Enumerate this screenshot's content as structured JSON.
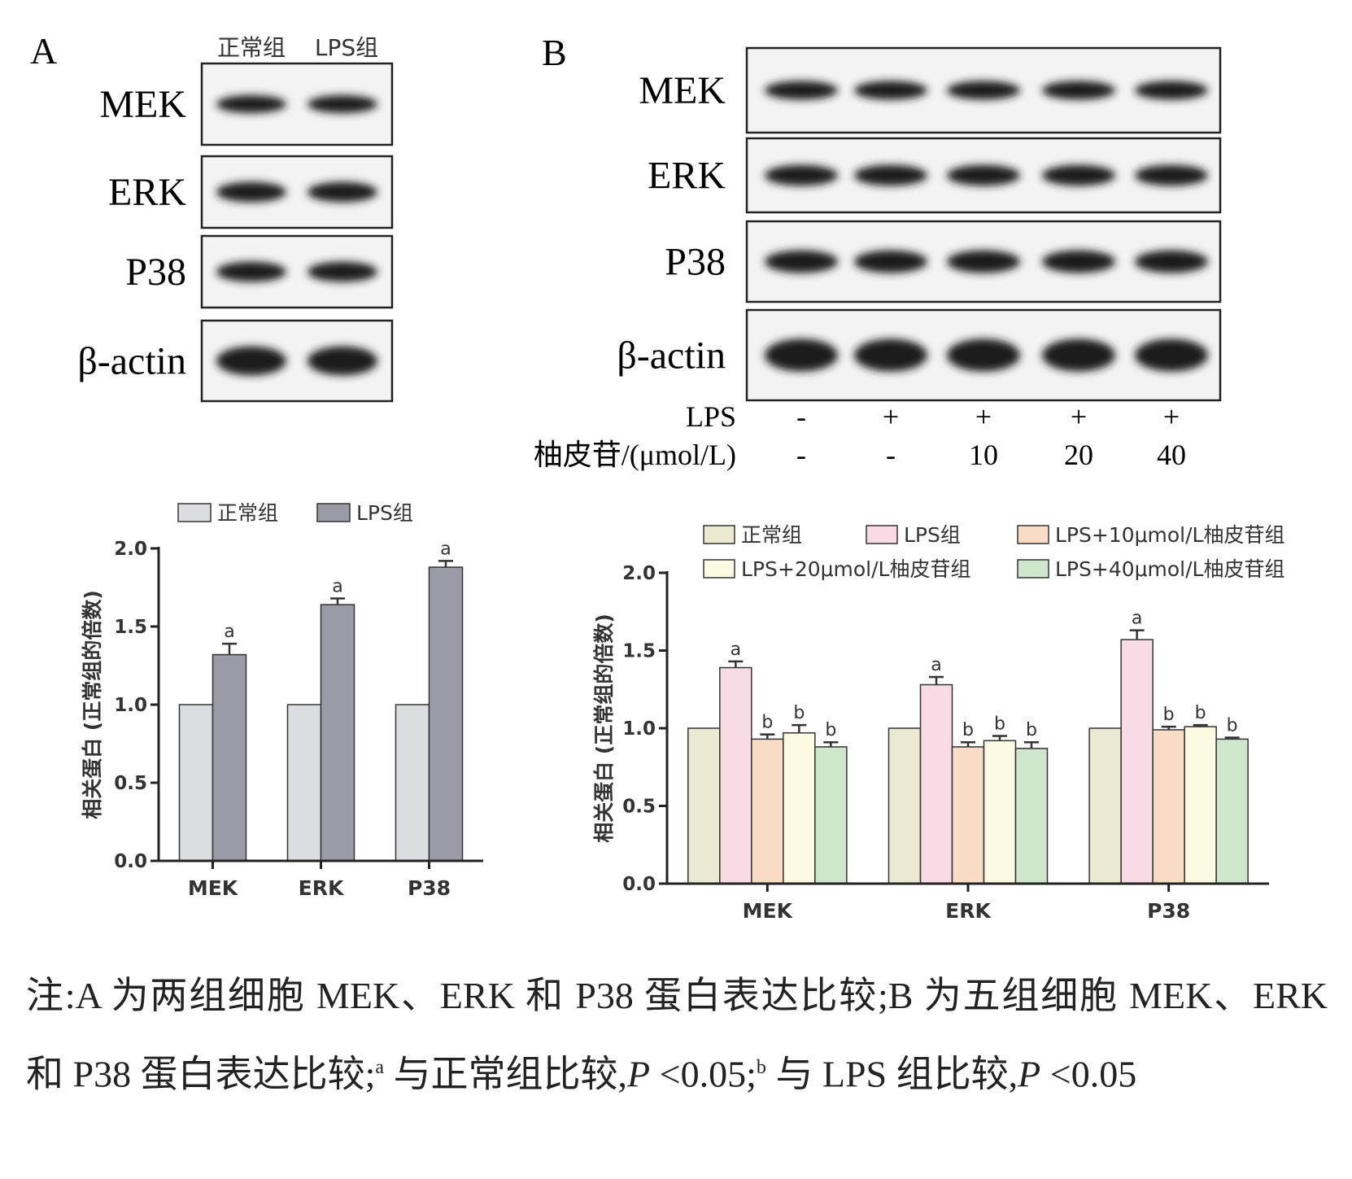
{
  "panel_a": {
    "label": "A",
    "lanes": [
      "正常组",
      "LPS组"
    ],
    "proteins": [
      "MEK",
      "ERK",
      "P38",
      "β-actin"
    ]
  },
  "panel_b": {
    "label": "B",
    "proteins": [
      "MEK",
      "ERK",
      "P38",
      "β-actin"
    ],
    "treatments": [
      {
        "label": "LPS",
        "values": [
          "-",
          "+",
          "+",
          "+",
          "+"
        ]
      },
      {
        "label": "柚皮苷/(μmol/L)",
        "values": [
          "-",
          "-",
          "10",
          "20",
          "40"
        ]
      }
    ]
  },
  "chart_data": [
    {
      "type": "bar",
      "y_label": "相关蛋白 (正常组的倍数)",
      "categories": [
        "MEK",
        "ERK",
        "P38"
      ],
      "series": [
        {
          "name": "正常组",
          "color": "#dcdde0",
          "values": [
            1,
            1,
            1
          ]
        },
        {
          "name": "LPS组",
          "color": "#9a9ba6",
          "values": [
            1.32,
            1.64,
            1.88
          ],
          "errors": [
            0.07,
            0.04,
            0.04
          ],
          "annotations": [
            "a",
            "a",
            "a"
          ]
        }
      ],
      "ylim": [
        0,
        2
      ],
      "yticks": [
        {
          "value": 0,
          "label": "0.0"
        },
        {
          "value": 0.5,
          "label": "0.5"
        },
        {
          "value": 1,
          "label": "1.0"
        },
        {
          "value": 1.5,
          "label": "1.5"
        },
        {
          "value": 2,
          "label": "2.0"
        }
      ]
    },
    {
      "type": "bar",
      "y_label": "相关蛋白 (正常组的倍数)",
      "categories": [
        "MEK",
        "ERK",
        "P38"
      ],
      "series": [
        {
          "name": "正常组",
          "color": "#ece9d1",
          "values": [
            1,
            1,
            1
          ]
        },
        {
          "name": "LPS组",
          "color": "#f9dbe6",
          "values": [
            1.39,
            1.28,
            1.57
          ],
          "errors": [
            0.04,
            0.05,
            0.06
          ],
          "annotations": [
            "a",
            "a",
            "a"
          ]
        },
        {
          "name": "LPS+10μmol/L柚皮苷组",
          "color": "#f8dcc6",
          "values": [
            0.93,
            0.88,
            0.99
          ],
          "errors": [
            0.03,
            0.03,
            0.02
          ],
          "annotations": [
            "b",
            "b",
            "b"
          ]
        },
        {
          "name": "LPS+20μmol/L柚皮苷组",
          "color": "#fdfae2",
          "values": [
            0.97,
            0.92,
            1.01
          ],
          "errors": [
            0.05,
            0.03,
            0.01
          ],
          "annotations": [
            "b",
            "b",
            "b"
          ]
        },
        {
          "name": "LPS+40μmol/L柚皮苷组",
          "color": "#cde6cc",
          "values": [
            0.88,
            0.87,
            0.93
          ],
          "errors": [
            0.03,
            0.04,
            0.01
          ],
          "annotations": [
            "b",
            "b",
            "b"
          ]
        }
      ],
      "ylim": [
        0,
        2
      ],
      "yticks": [
        {
          "value": 0,
          "label": "0.0"
        },
        {
          "value": 0.5,
          "label": "0.5"
        },
        {
          "value": 1,
          "label": "1.0"
        },
        {
          "value": 1.5,
          "label": "1.5"
        },
        {
          "value": 2,
          "label": "2.0"
        }
      ]
    }
  ],
  "caption": [
    "注:A 为两组细胞 MEK、ERK 和 P38 蛋白表达比较;B 为五组细胞 MEK、ERK 和 P38 蛋白表达比较;",
    "a",
    " 与正常组比较,",
    "P",
    " <0.05;",
    "b",
    " 与 LPS 组比较,",
    "P",
    " <0.05"
  ]
}
